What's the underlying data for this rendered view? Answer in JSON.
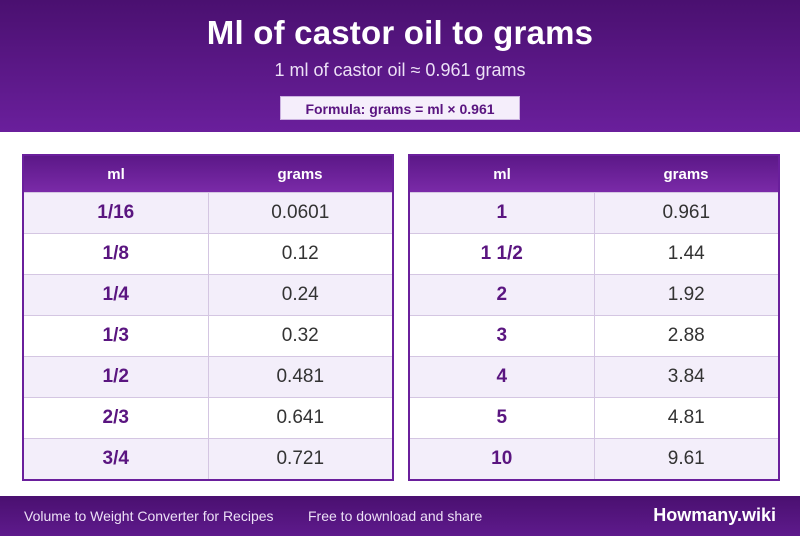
{
  "header": {
    "title": "Ml of castor oil to grams",
    "subtitle": "1 ml of castor oil ≈ 0.961 grams",
    "formula": "Formula: grams = ml × 0.961"
  },
  "tables": [
    {
      "col1": "ml",
      "col2": "grams",
      "rows": [
        [
          "1/16",
          "0.0601"
        ],
        [
          "1/8",
          "0.12"
        ],
        [
          "1/4",
          "0.24"
        ],
        [
          "1/3",
          "0.32"
        ],
        [
          "1/2",
          "0.481"
        ],
        [
          "2/3",
          "0.641"
        ],
        [
          "3/4",
          "0.721"
        ]
      ]
    },
    {
      "col1": "ml",
      "col2": "grams",
      "rows": [
        [
          "1",
          "0.961"
        ],
        [
          "1 1/2",
          "1.44"
        ],
        [
          "2",
          "1.92"
        ],
        [
          "3",
          "2.88"
        ],
        [
          "4",
          "3.84"
        ],
        [
          "5",
          "4.81"
        ],
        [
          "10",
          "9.61"
        ]
      ]
    }
  ],
  "footer": {
    "left_text": "Volume to Weight Converter for Recipes",
    "middle_text": "Free to download and share",
    "brand": "Howmany.wiki"
  }
}
